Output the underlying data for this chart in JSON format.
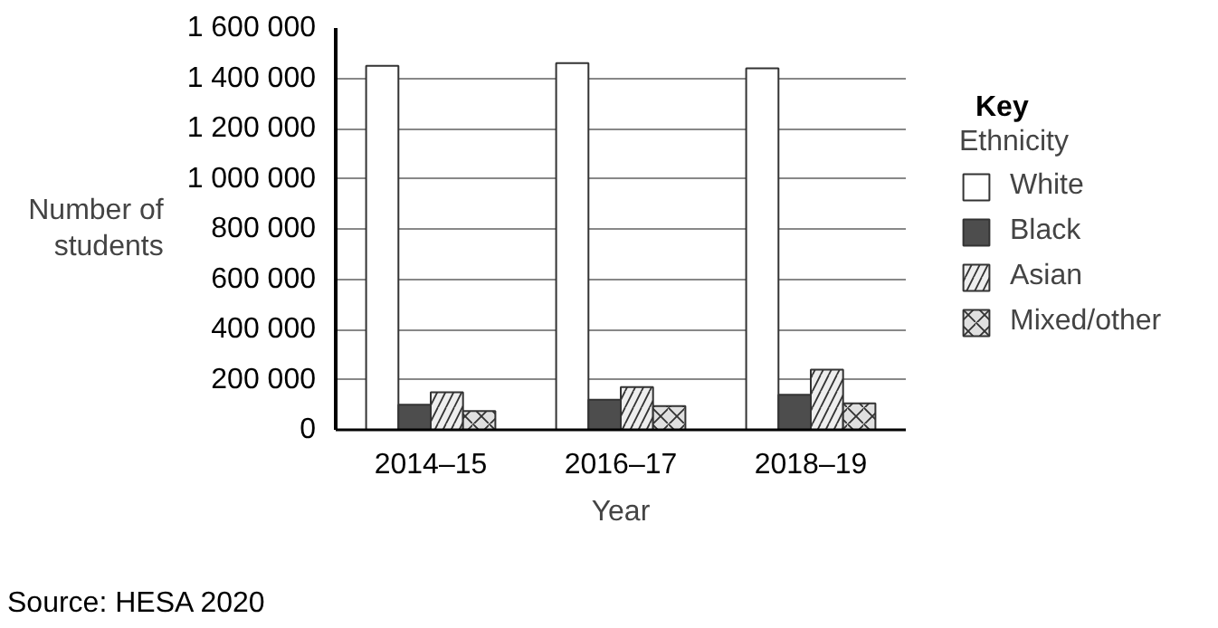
{
  "chart_data": {
    "type": "bar",
    "xlabel": "Year",
    "ylabel": "Number of\nstudents",
    "legend_title": "Ethnicity",
    "legend": "right",
    "grid": "y",
    "categories": [
      "2014–15",
      "2016–17",
      "2018–19"
    ],
    "ylim": [
      0,
      1600000
    ],
    "yticks": [
      {
        "value": 0,
        "label": "0"
      },
      {
        "value": 200000,
        "label": "200 000"
      },
      {
        "value": 400000,
        "label": "400 000"
      },
      {
        "value": 600000,
        "label": "600 000"
      },
      {
        "value": 800000,
        "label": "800 000"
      },
      {
        "value": 1000000,
        "label": "1 000 000"
      },
      {
        "value": 1200000,
        "label": "1 200 000"
      },
      {
        "value": 1400000,
        "label": "1 400 000"
      },
      {
        "value": 1600000,
        "label": "1 600 000"
      }
    ],
    "series": [
      {
        "name": "White",
        "color": "#ffffff",
        "values": [
          1450000,
          1460000,
          1440000
        ]
      },
      {
        "name": "Black",
        "color": "#4d4d4d",
        "values": [
          100000,
          120000,
          140000
        ]
      },
      {
        "name": "Asian",
        "color": "#eeeeee",
        "values": [
          150000,
          170000,
          240000
        ]
      },
      {
        "name": "Mixed/other",
        "color": "#e0e0e0",
        "values": [
          75000,
          95000,
          105000
        ]
      }
    ],
    "annotations": [
      "Key",
      "Source: HESA 2020"
    ]
  }
}
